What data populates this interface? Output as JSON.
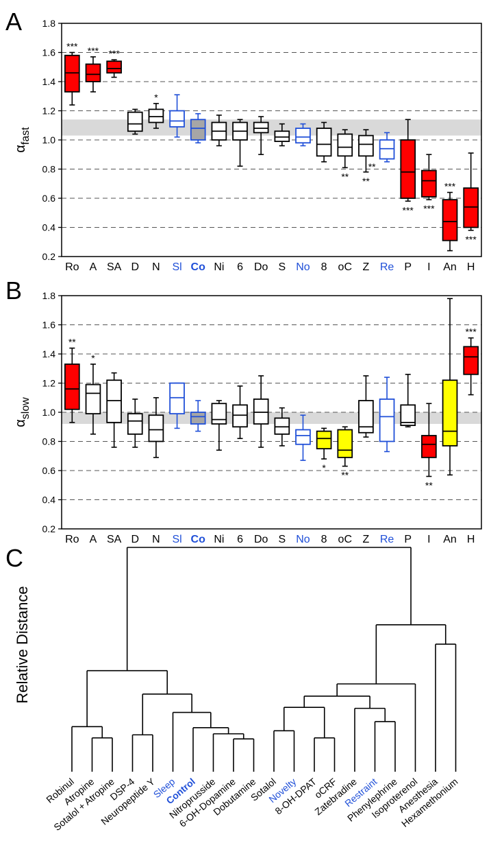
{
  "panels": {
    "A": "A",
    "B": "B",
    "C": "C"
  },
  "colors": {
    "significant": "#ff0000",
    "moderate": "#ffff00",
    "normal": "#ffffff",
    "control_fill": "#a6a6a6",
    "blue": "#1f4fd8",
    "reference_band": "#d9d9d9",
    "stroke": "#000000"
  },
  "chart_data": [
    {
      "type": "box",
      "panel": "A",
      "ylabel_main": "α",
      "ylabel_sub": "fast",
      "ylim": [
        0.2,
        1.8
      ],
      "yticks": [
        "0.2",
        "0.4",
        "0.6",
        "0.8",
        "1.0",
        "1.2",
        "1.4",
        "1.6",
        "1.8"
      ],
      "grid": "dashed horizontal",
      "reference_band": [
        1.03,
        1.14
      ],
      "categories": [
        "Ro",
        "A",
        "SA",
        "D",
        "N",
        "Sl",
        "Co",
        "Ni",
        "6",
        "Do",
        "S",
        "No",
        "8",
        "oC",
        "Z",
        "Re",
        "P",
        "I",
        "An",
        "H"
      ],
      "boxes": [
        {
          "label": "Ro",
          "min": 1.24,
          "q1": 1.33,
          "median": 1.46,
          "q3": 1.58,
          "max": 1.6,
          "color": "red",
          "blue_label": false,
          "bold_label": false,
          "stars": "***",
          "star_pos": "above"
        },
        {
          "label": "A",
          "min": 1.33,
          "q1": 1.4,
          "median": 1.45,
          "q3": 1.52,
          "max": 1.57,
          "color": "red",
          "blue_label": false,
          "bold_label": false,
          "stars": "***",
          "star_pos": "above"
        },
        {
          "label": "SA",
          "min": 1.43,
          "q1": 1.46,
          "median": 1.49,
          "q3": 1.54,
          "max": 1.55,
          "color": "red",
          "blue_label": false,
          "bold_label": false,
          "stars": "***",
          "star_pos": "above"
        },
        {
          "label": "D",
          "min": 1.04,
          "q1": 1.06,
          "median": 1.11,
          "q3": 1.19,
          "max": 1.21,
          "color": "white",
          "blue_label": false,
          "bold_label": false,
          "stars": "",
          "star_pos": ""
        },
        {
          "label": "N",
          "min": 1.08,
          "q1": 1.12,
          "median": 1.16,
          "q3": 1.21,
          "max": 1.25,
          "color": "white",
          "blue_label": false,
          "bold_label": false,
          "stars": "*",
          "star_pos": "above"
        },
        {
          "label": "Sl",
          "min": 1.02,
          "q1": 1.09,
          "median": 1.13,
          "q3": 1.2,
          "max": 1.31,
          "color": "white",
          "blue_label": true,
          "bold_label": false,
          "stars": "",
          "star_pos": ""
        },
        {
          "label": "Co",
          "min": 0.98,
          "q1": 1.0,
          "median": 1.08,
          "q3": 1.14,
          "max": 1.18,
          "color": "control",
          "blue_label": true,
          "bold_label": true,
          "stars": "",
          "star_pos": ""
        },
        {
          "label": "Ni",
          "min": 0.96,
          "q1": 1.0,
          "median": 1.06,
          "q3": 1.12,
          "max": 1.17,
          "color": "white",
          "blue_label": false,
          "bold_label": false,
          "stars": "",
          "star_pos": ""
        },
        {
          "label": "6",
          "min": 0.82,
          "q1": 1.0,
          "median": 1.06,
          "q3": 1.12,
          "max": 1.14,
          "color": "white",
          "blue_label": false,
          "bold_label": false,
          "stars": "",
          "star_pos": ""
        },
        {
          "label": "Do",
          "min": 0.9,
          "q1": 1.05,
          "median": 1.08,
          "q3": 1.12,
          "max": 1.16,
          "color": "white",
          "blue_label": false,
          "bold_label": false,
          "stars": "",
          "star_pos": ""
        },
        {
          "label": "S",
          "min": 0.96,
          "q1": 0.99,
          "median": 1.02,
          "q3": 1.06,
          "max": 1.11,
          "color": "white",
          "blue_label": false,
          "bold_label": false,
          "stars": "",
          "star_pos": ""
        },
        {
          "label": "No",
          "min": 0.96,
          "q1": 0.98,
          "median": 1.02,
          "q3": 1.08,
          "max": 1.11,
          "color": "white",
          "blue_label": true,
          "bold_label": false,
          "stars": "",
          "star_pos": ""
        },
        {
          "label": "8",
          "min": 0.85,
          "q1": 0.89,
          "median": 0.97,
          "q3": 1.08,
          "max": 1.12,
          "color": "white",
          "blue_label": false,
          "bold_label": false,
          "stars": "",
          "star_pos": ""
        },
        {
          "label": "oC",
          "min": 0.81,
          "q1": 0.89,
          "median": 0.95,
          "q3": 1.04,
          "max": 1.07,
          "color": "white",
          "blue_label": false,
          "bold_label": false,
          "stars": "**",
          "star_pos": "below"
        },
        {
          "label": "Z",
          "min": 0.78,
          "q1": 0.89,
          "median": 0.97,
          "q3": 1.03,
          "max": 1.07,
          "color": "white",
          "blue_label": false,
          "bold_label": false,
          "stars": "**",
          "star_pos": "below"
        },
        {
          "label": "Re",
          "min": 0.85,
          "q1": 0.87,
          "median": 0.94,
          "q3": 1.0,
          "max": 1.05,
          "color": "white",
          "blue_label": true,
          "bold_label": false,
          "stars": "**",
          "star_pos": "left"
        },
        {
          "label": "P",
          "min": 0.58,
          "q1": 0.6,
          "median": 0.78,
          "q3": 1.0,
          "max": 1.14,
          "color": "red",
          "blue_label": false,
          "bold_label": false,
          "stars": "***",
          "star_pos": "below"
        },
        {
          "label": "I",
          "min": 0.59,
          "q1": 0.61,
          "median": 0.72,
          "q3": 0.79,
          "max": 0.9,
          "color": "red",
          "blue_label": false,
          "bold_label": false,
          "stars": "***",
          "star_pos": "below"
        },
        {
          "label": "An",
          "min": 0.24,
          "q1": 0.31,
          "median": 0.44,
          "q3": 0.59,
          "max": 0.64,
          "color": "red",
          "blue_label": false,
          "bold_label": false,
          "stars": "***",
          "star_pos": "above"
        },
        {
          "label": "H",
          "min": 0.38,
          "q1": 0.4,
          "median": 0.54,
          "q3": 0.67,
          "max": 0.91,
          "color": "red",
          "blue_label": false,
          "bold_label": false,
          "stars": "***",
          "star_pos": "below"
        }
      ]
    },
    {
      "type": "box",
      "panel": "B",
      "ylabel_main": "α",
      "ylabel_sub": "slow",
      "ylim": [
        0.2,
        1.8
      ],
      "yticks": [
        "0.2",
        "0.4",
        "0.6",
        "0.8",
        "1.0",
        "1.2",
        "1.4",
        "1.6",
        "1.8"
      ],
      "grid": "dashed horizontal",
      "reference_band": [
        0.92,
        1.0
      ],
      "categories": [
        "Ro",
        "A",
        "SA",
        "D",
        "N",
        "Sl",
        "Co",
        "Ni",
        "6",
        "Do",
        "S",
        "No",
        "8",
        "oC",
        "Z",
        "Re",
        "P",
        "I",
        "An",
        "H"
      ],
      "boxes": [
        {
          "label": "Ro",
          "min": 0.93,
          "q1": 1.02,
          "median": 1.16,
          "q3": 1.33,
          "max": 1.44,
          "color": "red",
          "blue_label": false,
          "bold_label": false,
          "stars": "**",
          "star_pos": "above"
        },
        {
          "label": "A",
          "min": 0.85,
          "q1": 0.99,
          "median": 1.13,
          "q3": 1.19,
          "max": 1.33,
          "color": "white",
          "blue_label": false,
          "bold_label": false,
          "stars": "*",
          "star_pos": "above"
        },
        {
          "label": "SA",
          "min": 0.76,
          "q1": 0.93,
          "median": 1.08,
          "q3": 1.22,
          "max": 1.27,
          "color": "white",
          "blue_label": false,
          "bold_label": false,
          "stars": "",
          "star_pos": ""
        },
        {
          "label": "D",
          "min": 0.76,
          "q1": 0.85,
          "median": 0.94,
          "q3": 0.99,
          "max": 1.09,
          "color": "white",
          "blue_label": false,
          "bold_label": false,
          "stars": "",
          "star_pos": ""
        },
        {
          "label": "N",
          "min": 0.69,
          "q1": 0.8,
          "median": 0.88,
          "q3": 0.98,
          "max": 1.1,
          "color": "white",
          "blue_label": false,
          "bold_label": false,
          "stars": "",
          "star_pos": ""
        },
        {
          "label": "Sl",
          "min": 0.89,
          "q1": 0.99,
          "median": 1.1,
          "q3": 1.2,
          "max": 1.2,
          "color": "white",
          "blue_label": true,
          "bold_label": false,
          "stars": "",
          "star_pos": ""
        },
        {
          "label": "Co",
          "min": 0.87,
          "q1": 0.92,
          "median": 0.97,
          "q3": 1.0,
          "max": 1.08,
          "color": "control",
          "blue_label": true,
          "bold_label": true,
          "stars": "",
          "star_pos": ""
        },
        {
          "label": "Ni",
          "min": 0.74,
          "q1": 0.92,
          "median": 0.95,
          "q3": 1.06,
          "max": 1.08,
          "color": "white",
          "blue_label": false,
          "bold_label": false,
          "stars": "",
          "star_pos": ""
        },
        {
          "label": "6",
          "min": 0.82,
          "q1": 0.9,
          "median": 0.98,
          "q3": 1.05,
          "max": 1.18,
          "color": "white",
          "blue_label": false,
          "bold_label": false,
          "stars": "",
          "star_pos": ""
        },
        {
          "label": "Do",
          "min": 0.76,
          "q1": 0.92,
          "median": 1.0,
          "q3": 1.09,
          "max": 1.25,
          "color": "white",
          "blue_label": false,
          "bold_label": false,
          "stars": "",
          "star_pos": ""
        },
        {
          "label": "S",
          "min": 0.77,
          "q1": 0.85,
          "median": 0.9,
          "q3": 0.96,
          "max": 1.03,
          "color": "white",
          "blue_label": false,
          "bold_label": false,
          "stars": "",
          "star_pos": ""
        },
        {
          "label": "No",
          "min": 0.67,
          "q1": 0.78,
          "median": 0.84,
          "q3": 0.88,
          "max": 0.98,
          "color": "white",
          "blue_label": true,
          "bold_label": false,
          "stars": "",
          "star_pos": ""
        },
        {
          "label": "8",
          "min": 0.68,
          "q1": 0.75,
          "median": 0.82,
          "q3": 0.87,
          "max": 0.89,
          "color": "yellow",
          "blue_label": false,
          "bold_label": false,
          "stars": "*",
          "star_pos": "below"
        },
        {
          "label": "oC",
          "min": 0.63,
          "q1": 0.69,
          "median": 0.74,
          "q3": 0.88,
          "max": 0.9,
          "color": "yellow",
          "blue_label": false,
          "bold_label": false,
          "stars": "**",
          "star_pos": "below"
        },
        {
          "label": "Z",
          "min": 0.83,
          "q1": 0.86,
          "median": 0.9,
          "q3": 1.08,
          "max": 1.25,
          "color": "white",
          "blue_label": false,
          "bold_label": false,
          "stars": "",
          "star_pos": ""
        },
        {
          "label": "Re",
          "min": 0.73,
          "q1": 0.8,
          "median": 0.97,
          "q3": 1.09,
          "max": 1.24,
          "color": "white",
          "blue_label": true,
          "bold_label": false,
          "stars": "",
          "star_pos": ""
        },
        {
          "label": "P",
          "min": 0.9,
          "q1": 0.91,
          "median": 0.93,
          "q3": 1.05,
          "max": 1.26,
          "color": "white",
          "blue_label": false,
          "bold_label": false,
          "stars": "",
          "star_pos": ""
        },
        {
          "label": "I",
          "min": 0.56,
          "q1": 0.69,
          "median": 0.78,
          "q3": 0.84,
          "max": 1.06,
          "color": "red",
          "blue_label": false,
          "bold_label": false,
          "stars": "**",
          "star_pos": "below"
        },
        {
          "label": "An",
          "min": 0.57,
          "q1": 0.77,
          "median": 0.87,
          "q3": 1.22,
          "max": 1.78,
          "color": "yellow",
          "blue_label": false,
          "bold_label": false,
          "stars": "",
          "star_pos": ""
        },
        {
          "label": "H",
          "min": 1.12,
          "q1": 1.26,
          "median": 1.38,
          "q3": 1.45,
          "max": 1.51,
          "color": "red",
          "blue_label": false,
          "bold_label": false,
          "stars": "***",
          "star_pos": "above"
        }
      ]
    },
    {
      "type": "dendrogram",
      "panel": "C",
      "ylabel": "Relative Distance",
      "leaves": [
        {
          "label": "Robinul",
          "blue": false,
          "bold": false
        },
        {
          "label": "Atropine",
          "blue": false,
          "bold": false
        },
        {
          "label": "Sotalol + Atropine",
          "blue": false,
          "bold": false
        },
        {
          "label": "DSP-4",
          "blue": false,
          "bold": false
        },
        {
          "label": "Neuropeptide Y",
          "blue": false,
          "bold": false
        },
        {
          "label": "Sleep",
          "blue": true,
          "bold": false
        },
        {
          "label": "Control",
          "blue": true,
          "bold": true
        },
        {
          "label": "Nitroprusside",
          "blue": false,
          "bold": false
        },
        {
          "label": "6-OH-Dopamine",
          "blue": false,
          "bold": false
        },
        {
          "label": "Dobutamine",
          "blue": false,
          "bold": false
        },
        {
          "label": "Sotalol",
          "blue": false,
          "bold": false
        },
        {
          "label": "Novelty",
          "blue": true,
          "bold": false
        },
        {
          "label": "8-OH-DPAT",
          "blue": false,
          "bold": false
        },
        {
          "label": "oCRF",
          "blue": false,
          "bold": false
        },
        {
          "label": "Zatebradine",
          "blue": false,
          "bold": false
        },
        {
          "label": "Restraint",
          "blue": true,
          "bold": false
        },
        {
          "label": "Phenylephrine",
          "blue": false,
          "bold": false
        },
        {
          "label": "Isoproterenol",
          "blue": false,
          "bold": false
        },
        {
          "label": "Anesthesia",
          "blue": false,
          "bold": false
        },
        {
          "label": "Hexamethonium",
          "blue": false,
          "bold": false
        }
      ],
      "merges": [
        {
          "left": 1,
          "right": 2,
          "height": 0.065
        },
        {
          "left": 0,
          "right": "m0",
          "height": 0.12
        },
        {
          "left": 3,
          "right": 4,
          "height": 0.08
        },
        {
          "left": 8,
          "right": 9,
          "height": 0.06
        },
        {
          "left": 7,
          "right": "m3",
          "height": 0.085
        },
        {
          "left": 6,
          "right": "m4",
          "height": 0.115
        },
        {
          "left": 5,
          "right": "m5",
          "height": 0.19
        },
        {
          "left": "m2",
          "right": "m6",
          "height": 0.28
        },
        {
          "left": "m1",
          "right": "m7",
          "height": 0.395
        },
        {
          "left": 10,
          "right": 11,
          "height": 0.1
        },
        {
          "left": 12,
          "right": 13,
          "height": 0.065
        },
        {
          "left": "m9",
          "right": "m10",
          "height": 0.215
        },
        {
          "left": 15,
          "right": 16,
          "height": 0.145
        },
        {
          "left": 14,
          "right": "m12",
          "height": 0.21
        },
        {
          "left": "m11",
          "right": "m13",
          "height": 0.27
        },
        {
          "left": "m14",
          "right": 17,
          "height": 0.33
        },
        {
          "left": 18,
          "right": 19,
          "height": 0.525
        },
        {
          "left": "m15",
          "right": "m16",
          "height": 0.62
        },
        {
          "left": "m8",
          "right": "m17",
          "height": 1.0
        }
      ]
    }
  ]
}
